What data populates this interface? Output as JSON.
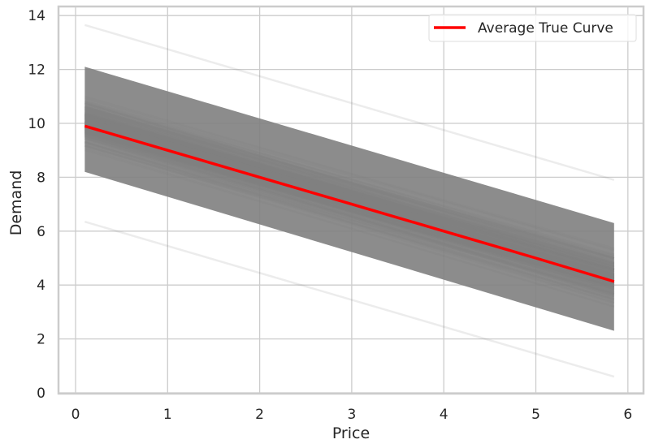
{
  "chart_data": {
    "type": "line",
    "title": "",
    "xlabel": "Price",
    "ylabel": "Demand",
    "xlim": [
      -0.2,
      6.2
    ],
    "ylim": [
      0,
      14.2
    ],
    "xticks": [
      0,
      1,
      2,
      3,
      4,
      5,
      6
    ],
    "yticks": [
      0,
      2,
      4,
      6,
      8,
      10,
      12,
      14
    ],
    "grid": true,
    "legend": {
      "position": "upper right",
      "entries": [
        "Average True Curve"
      ]
    },
    "series": [
      {
        "name": "Average True Curve",
        "color": "#ff0000",
        "x": [
          0.1,
          1,
          2,
          3,
          4,
          5,
          5.85
        ],
        "y": [
          9.9,
          9.0,
          8.0,
          7.0,
          6.0,
          5.0,
          4.13
        ]
      },
      {
        "name": "Sampled curves (gray, semi-transparent)",
        "color": "#808080",
        "x_range": [
          0.1,
          5.85
        ],
        "slope": -1.0,
        "intercept_min_at_x0.1": 6.35,
        "intercept_max_at_x0.1": 13.65,
        "dense_band_at_x0.1": [
          8.2,
          12.1
        ],
        "dense_band_at_x5.85": [
          2.3,
          6.3
        ],
        "end_min_at_x5.85": 0.6,
        "end_max_at_x5.85": 7.9
      }
    ]
  },
  "labels": {
    "xlabel": "Price",
    "ylabel": "Demand",
    "legend": "Average True Curve",
    "xticks": [
      "0",
      "1",
      "2",
      "3",
      "4",
      "5",
      "6"
    ],
    "yticks": [
      "0",
      "2",
      "4",
      "6",
      "8",
      "10",
      "12",
      "14"
    ]
  }
}
